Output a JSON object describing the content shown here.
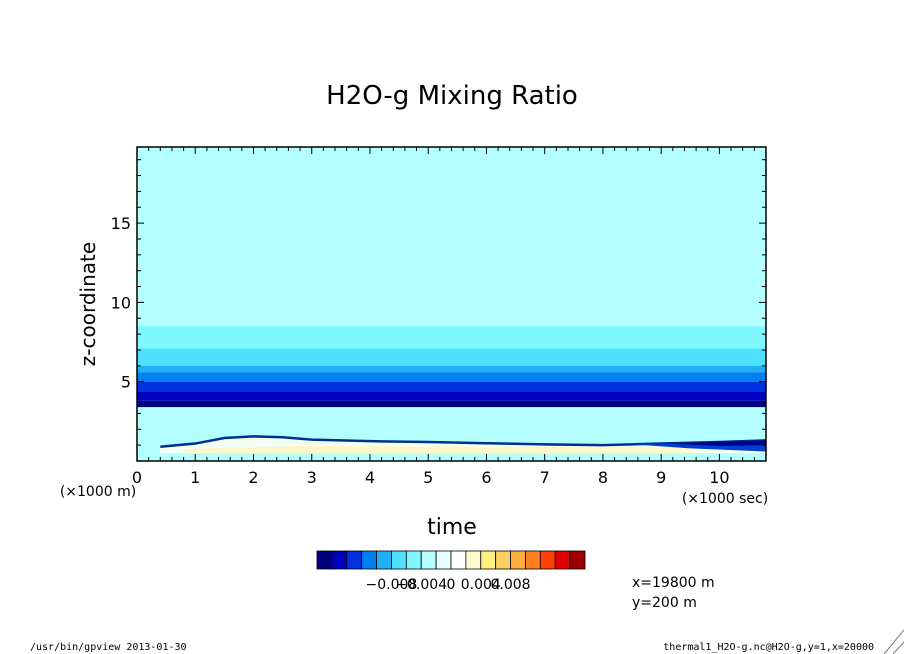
{
  "chart_data": {
    "type": "heatmap",
    "title": "H2O-g Mixing Ratio",
    "xlabel": "time",
    "ylabel": "z-coordinate",
    "x_unit_label": "(×1000 sec)",
    "y_unit_label": "(×1000 m)",
    "xlim": [
      0,
      10.8
    ],
    "ylim": [
      0,
      19.8
    ],
    "x_ticks": [
      0,
      1,
      2,
      3,
      4,
      5,
      6,
      7,
      8,
      9,
      10
    ],
    "y_ticks": [
      5,
      10,
      15
    ],
    "horizontal_bands": [
      {
        "z_bottom": 3.4,
        "z_top": 3.8,
        "level": 0,
        "color": "#00007f"
      },
      {
        "z_bottom": 3.8,
        "z_top": 4.4,
        "level": 1,
        "color": "#0000bf"
      },
      {
        "z_bottom": 4.4,
        "z_top": 5.0,
        "level": 2,
        "color": "#0030e0"
      },
      {
        "z_bottom": 5.0,
        "z_top": 5.6,
        "level": 3,
        "color": "#0080f0"
      },
      {
        "z_bottom": 5.6,
        "z_top": 6.0,
        "level": 4,
        "color": "#20b0f8"
      },
      {
        "z_bottom": 6.0,
        "z_top": 7.1,
        "level": 5,
        "color": "#50e0ff"
      },
      {
        "z_bottom": 7.1,
        "z_top": 8.5,
        "level": 6,
        "color": "#7ff8ff"
      },
      {
        "z_bottom": 8.5,
        "z_top": 19.8,
        "level": 7,
        "color": "#b4ffff"
      }
    ],
    "background_color": "#b4ffff",
    "perturbation_profile": {
      "time": [
        0.4,
        1,
        1.5,
        2,
        2.5,
        3,
        4,
        5,
        6,
        7,
        8,
        9,
        10,
        10.8
      ],
      "z_top": [
        0.9,
        1.1,
        1.45,
        1.55,
        1.5,
        1.35,
        1.25,
        1.2,
        1.12,
        1.05,
        1.0,
        1.1,
        1.2,
        1.3
      ]
    },
    "colorbar": {
      "colors": [
        "#00007f",
        "#0000bf",
        "#0030e0",
        "#0080f0",
        "#20b0f8",
        "#50e0ff",
        "#7ff8ff",
        "#b4ffff",
        "#e8ffff",
        "#ffffff",
        "#fffad0",
        "#fff080",
        "#ffd060",
        "#ffb040",
        "#ff8020",
        "#ff4000",
        "#e00000",
        "#a00000"
      ],
      "tick_labels": [
        "−0.008",
        "−0.004",
        "0",
        "0.004",
        "0.008"
      ],
      "tick_values": [
        -0.008,
        -0.004,
        0,
        0.004,
        0.008
      ],
      "range": [
        -0.018,
        0.018
      ]
    }
  },
  "annotations": {
    "x_position": "x=19800  m",
    "y_position": "y=200  m",
    "footer_left": "/usr/bin/gpview  2013-01-30",
    "footer_right": "thermal1_H2O-g.nc@H2O-g,y=1,x=20000"
  }
}
